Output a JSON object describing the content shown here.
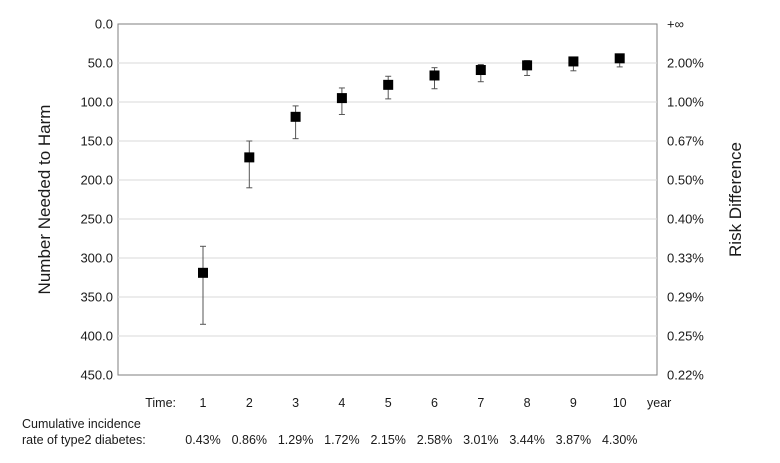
{
  "chart_data": {
    "type": "scatter",
    "title": "",
    "ylabel": "Number Needed to Harm",
    "y2label": "Risk Difference",
    "ylim": [
      0,
      450
    ],
    "y_inverted": true,
    "yticks": [
      "0.0",
      "50.0",
      "100.0",
      "150.0",
      "200.0",
      "250.0",
      "300.0",
      "350.0",
      "400.0",
      "450.0"
    ],
    "y2ticks": [
      "+∞",
      "2.00%",
      "1.00%",
      "0.67%",
      "0.50%",
      "0.40%",
      "0.33%",
      "0.29%",
      "0.25%",
      "0.22%"
    ],
    "grid": true,
    "x_row_label": "Time:",
    "x_unit": "year",
    "categories": [
      "1",
      "2",
      "3",
      "4",
      "5",
      "6",
      "7",
      "8",
      "9",
      "10"
    ],
    "cumulative_label_line1": "Cumulative  incidence",
    "cumulative_label_line2": "rate of type2 diabetes:",
    "cumulative_incidence": [
      "0.43%",
      "0.86%",
      "1.29%",
      "1.72%",
      "2.15%",
      "2.58%",
      "3.01%",
      "3.44%",
      "3.87%",
      "4.30%"
    ],
    "series": [
      {
        "values": [
          319,
          171,
          119,
          95,
          78,
          66,
          59,
          53,
          48,
          44
        ],
        "lower": [
          285,
          150,
          105,
          82,
          67,
          56,
          52,
          47,
          44,
          41
        ],
        "upper": [
          385,
          210,
          147,
          116,
          96,
          83,
          74,
          66,
          60,
          55
        ],
        "color": "#000000"
      }
    ]
  }
}
